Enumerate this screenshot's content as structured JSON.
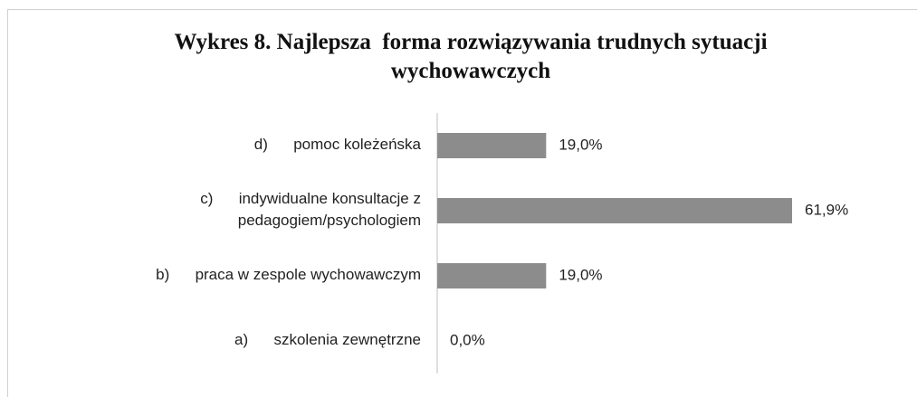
{
  "chart_data": {
    "type": "bar",
    "orientation": "horizontal",
    "title": "Wykres 8. Najlepsza  forma rozwiązywania trudnych sytuacji wychowawczych",
    "categories": [
      "d)      pomoc koleżeńska",
      "c)      indywidualne konsultacje z\npedagogiem/psychologiem",
      "b)      praca w zespole wychowawczym",
      "a)      szkolenia zewnętrzne"
    ],
    "values": [
      19.0,
      61.9,
      19.0,
      0.0
    ],
    "value_labels": [
      "19,0%",
      "61,9%",
      "19,0%",
      "0,0%"
    ],
    "color": "#8c8c8c"
  }
}
